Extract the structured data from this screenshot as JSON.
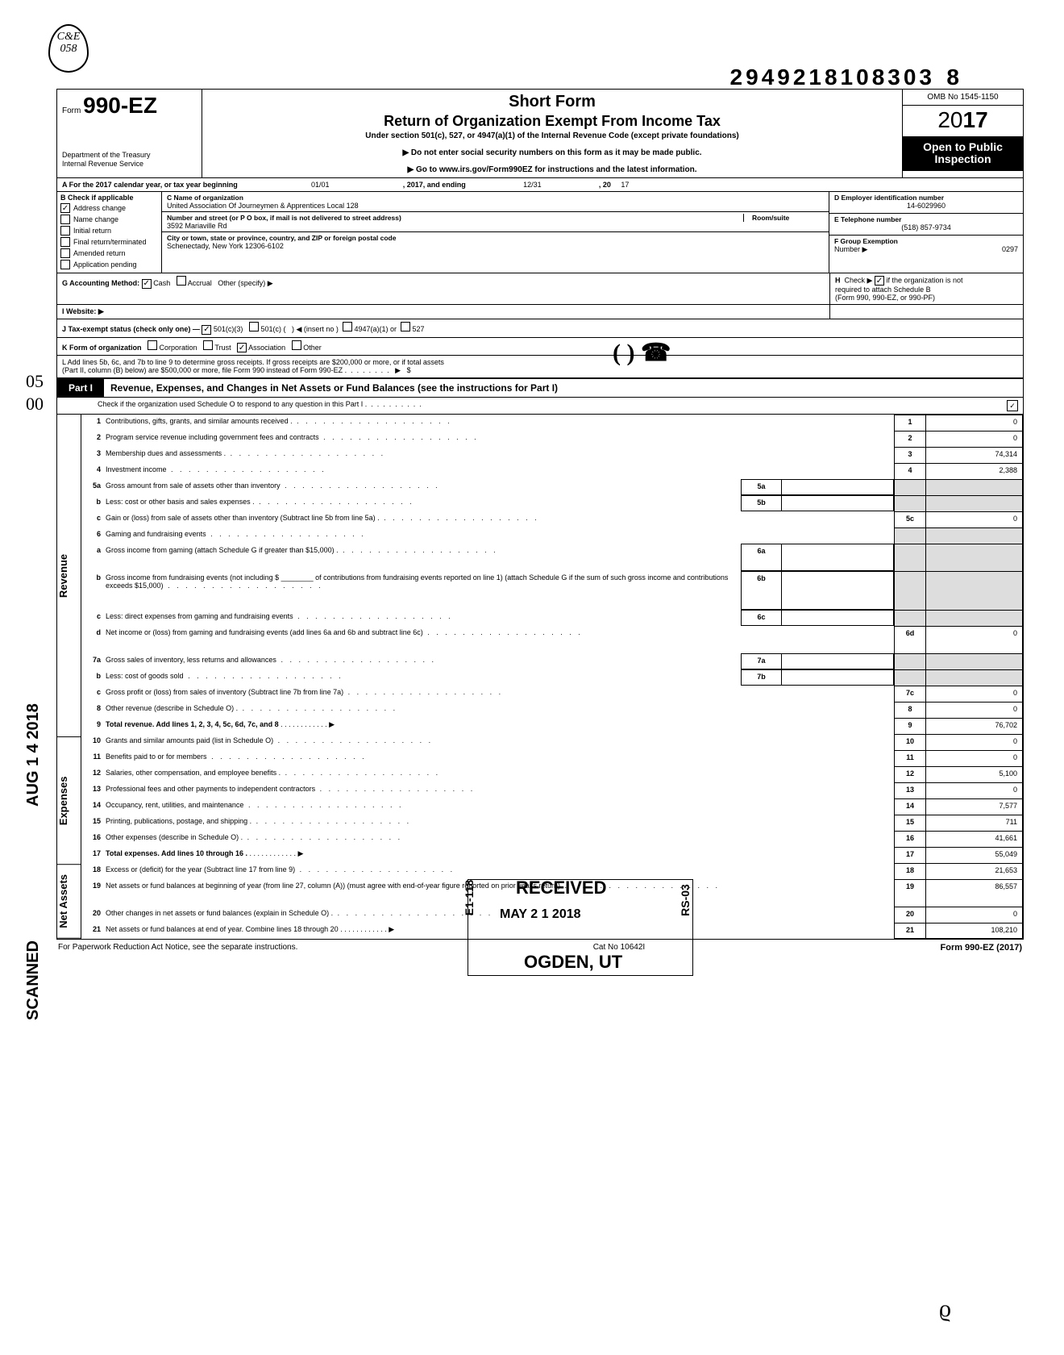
{
  "logo": {
    "l1": "C&E",
    "l2": "058"
  },
  "hw": {
    "a": "05",
    "b": "00"
  },
  "top_barcode": "2949218108303",
  "top_8": "8",
  "header": {
    "form_prefix": "Form",
    "form_no": "990-EZ",
    "dept1": "Department of the Treasury",
    "dept2": "Internal Revenue Service",
    "title": "Short Form",
    "subtitle": "Return of Organization Exempt From Income Tax",
    "under": "Under section 501(c), 527, or 4947(a)(1) of the Internal Revenue Code (except private foundations)",
    "arrow1": "▶ Do not enter social security numbers on this form as it may be made public.",
    "arrow2": "▶ Go to www.irs.gov/Form990EZ for instructions and the latest information.",
    "omb": "OMB No 1545-1150",
    "year_prefix": "20",
    "year_bold": "17",
    "open1": "Open to Public",
    "open2": "Inspection"
  },
  "rowA": {
    "text": "A For the 2017 calendar year, or tax year beginning",
    "begin": "01/01",
    "mid": ", 2017, and ending",
    "end": "12/31",
    "tail": ", 20",
    "yy": "17"
  },
  "colB": {
    "h": "B  Check if applicable",
    "items": [
      "Address change",
      "Name change",
      "Initial return",
      "Final return/terminated",
      "Amended return",
      "Application pending"
    ],
    "checked": 0
  },
  "colC": {
    "c_lbl": "C  Name of organization",
    "name": "United Association Of Journeymen & Apprentices Local 128",
    "addr_lbl": "Number and street (or P O  box, if mail is not delivered to street address)",
    "room_lbl": "Room/suite",
    "addr": "3592 Mariaville Rd",
    "city_lbl": "City or town, state or province, country, and ZIP or foreign postal code",
    "city": "Schenectady, New York 12306-6102"
  },
  "colDEF": {
    "d_lbl": "D Employer identification number",
    "d_val": "14-6029960",
    "e_lbl": "E Telephone number",
    "e_val": "(518) 857-9734",
    "f_lbl": "F Group Exemption",
    "f_lbl2": "Number  ▶",
    "f_val": "0297"
  },
  "lineG": {
    "l": "G  Accounting Method:",
    "cash": "Cash",
    "accrual": "Accrual",
    "other": "Other (specify) ▶",
    "cash_checked": true
  },
  "lineH": {
    "t": "H  Check ▶       if the organization is not",
    "t2": "required to attach Schedule B",
    "t3": "(Form 990, 990-EZ, or 990-PF)",
    "checked": true
  },
  "lineI": "I   Website: ▶",
  "lineJ": {
    "t": "J  Tax-exempt status (check only one) — ",
    "a": "501(c)(3)",
    "b": "501(c) (",
    "b2": ")  ◀ (insert no )",
    "c": "4947(a)(1) or",
    "d": "527",
    "a_checked": true
  },
  "lineK": {
    "t": "K  Form of organization",
    "a": "Corporation",
    "b": "Trust",
    "c": "Association",
    "d": "Other",
    "c_checked": true
  },
  "lineL": {
    "t1": "L  Add lines 5b, 6c, and 7b to line 9 to determine gross receipts. If gross receipts are $200,000 or more, or if total assets",
    "t2": "(Part II, column (B) below) are $500,000 or more, file Form 990 instead of Form 990-EZ .",
    "arrow": "▶",
    "sym": "$"
  },
  "part1": {
    "tag": "Part I",
    "title": "Revenue, Expenses, and Changes in Net Assets or Fund Balances (see the instructions for Part I)",
    "sched_o": "Check if the organization used Schedule O to respond to any question in this Part I",
    "sched_o_checked": true
  },
  "sections": {
    "revenue_lbl": "Revenue",
    "expenses_lbl": "Expenses",
    "netassets_lbl": "Net Assets"
  },
  "rows": [
    {
      "n": "1",
      "d": "Contributions, gifts, grants, and similar amounts received .",
      "rn": "1",
      "rv": "0"
    },
    {
      "n": "2",
      "d": "Program service revenue including government fees and contracts",
      "rn": "2",
      "rv": "0"
    },
    {
      "n": "3",
      "d": "Membership dues and assessments .",
      "rn": "3",
      "rv": "74,314"
    },
    {
      "n": "4",
      "d": "Investment income",
      "rn": "4",
      "rv": "2,388"
    },
    {
      "n": "5a",
      "d": "Gross amount from sale of assets other than inventory",
      "mid": "5a",
      "midv": "",
      "rn": "",
      "rv": "",
      "grey": true
    },
    {
      "n": "b",
      "d": "Less: cost or other basis and sales expenses .",
      "mid": "5b",
      "midv": "",
      "rn": "",
      "rv": "",
      "grey": true
    },
    {
      "n": "c",
      "d": "Gain or (loss) from sale of assets other than inventory (Subtract line 5b from line 5a) .",
      "rn": "5c",
      "rv": "0"
    },
    {
      "n": "6",
      "d": "Gaming and fundraising events",
      "rn": "",
      "rv": "",
      "grey": true
    },
    {
      "n": "a",
      "d": "Gross income from gaming (attach Schedule G if greater than $15,000) .",
      "mid": "6a",
      "midv": "",
      "rn": "",
      "rv": "",
      "grey": true,
      "twoline": true
    },
    {
      "n": "b",
      "d": "Gross income from fundraising events (not including  $ ________ of contributions from fundraising events reported on line 1) (attach Schedule G if the sum of such gross income and contributions exceeds $15,000)",
      "mid": "6b",
      "midv": "",
      "rn": "",
      "rv": "",
      "grey": true,
      "threeline": true
    },
    {
      "n": "c",
      "d": "Less: direct expenses from gaming and fundraising events",
      "mid": "6c",
      "midv": "",
      "rn": "",
      "rv": "",
      "grey": true
    },
    {
      "n": "d",
      "d": "Net income or (loss) from gaming and fundraising events (add lines 6a and 6b and subtract line 6c)",
      "rn": "6d",
      "rv": "0",
      "twoline": true
    },
    {
      "n": "7a",
      "d": "Gross sales of inventory, less returns and allowances",
      "mid": "7a",
      "midv": "",
      "rn": "",
      "rv": "",
      "grey": true
    },
    {
      "n": "b",
      "d": "Less: cost of goods sold",
      "mid": "7b",
      "midv": "",
      "rn": "",
      "rv": "",
      "grey": true
    },
    {
      "n": "c",
      "d": "Gross profit or (loss) from sales of inventory (Subtract line 7b from line 7a)",
      "rn": "7c",
      "rv": "0"
    },
    {
      "n": "8",
      "d": "Other revenue (describe in Schedule O) .",
      "rn": "8",
      "rv": "0"
    },
    {
      "n": "9",
      "d": "Total revenue. Add lines 1, 2, 3, 4, 5c, 6d, 7c, and 8",
      "rn": "9",
      "rv": "76,702",
      "bold": true,
      "arrow": true
    },
    {
      "n": "10",
      "d": "Grants and similar amounts paid (list in Schedule O)",
      "rn": "10",
      "rv": "0"
    },
    {
      "n": "11",
      "d": "Benefits paid to or for members",
      "rn": "11",
      "rv": "0"
    },
    {
      "n": "12",
      "d": "Salaries, other compensation, and employee benefits  .",
      "rn": "12",
      "rv": "5,100"
    },
    {
      "n": "13",
      "d": "Professional fees and other payments to independent contractors",
      "rn": "13",
      "rv": "0"
    },
    {
      "n": "14",
      "d": "Occupancy, rent, utilities, and maintenance",
      "rn": "14",
      "rv": "7,577"
    },
    {
      "n": "15",
      "d": "Printing, publications, postage, and shipping .",
      "rn": "15",
      "rv": "711"
    },
    {
      "n": "16",
      "d": "Other expenses (describe in Schedule O)  .",
      "rn": "16",
      "rv": "41,661"
    },
    {
      "n": "17",
      "d": "Total expenses. Add lines 10 through 16  .",
      "rn": "17",
      "rv": "55,049",
      "bold": true,
      "arrow": true
    },
    {
      "n": "18",
      "d": "Excess or (deficit) for the year (Subtract line 17 from line 9)",
      "rn": "18",
      "rv": "21,653"
    },
    {
      "n": "19",
      "d": "Net assets or fund balances at beginning of year (from line 27, column (A)) (must agree with end-of-year figure reported on prior year's return)",
      "rn": "19",
      "rv": "86,557",
      "twoline": true
    },
    {
      "n": "20",
      "d": "Other changes in net assets or fund balances (explain in Schedule O) .",
      "rn": "20",
      "rv": "0"
    },
    {
      "n": "21",
      "d": "Net assets or fund balances at end of year. Combine lines 18 through 20",
      "rn": "21",
      "rv": "108,210",
      "arrow": true
    }
  ],
  "footer": {
    "l": "For Paperwork Reduction Act Notice, see the separate instructions.",
    "m": "Cat No  10642I",
    "r": "Form 990-EZ (2017)"
  },
  "stamps": {
    "received": "RECEIVED",
    "date": "MAY 2 1 2018",
    "ogden": "OGDEN, UT",
    "e119": "E1-118",
    "rs03": "RS-03",
    "side1": "AUG 1 4 2018",
    "side2": "SCANNED",
    "handnum": "( ) ☎"
  }
}
